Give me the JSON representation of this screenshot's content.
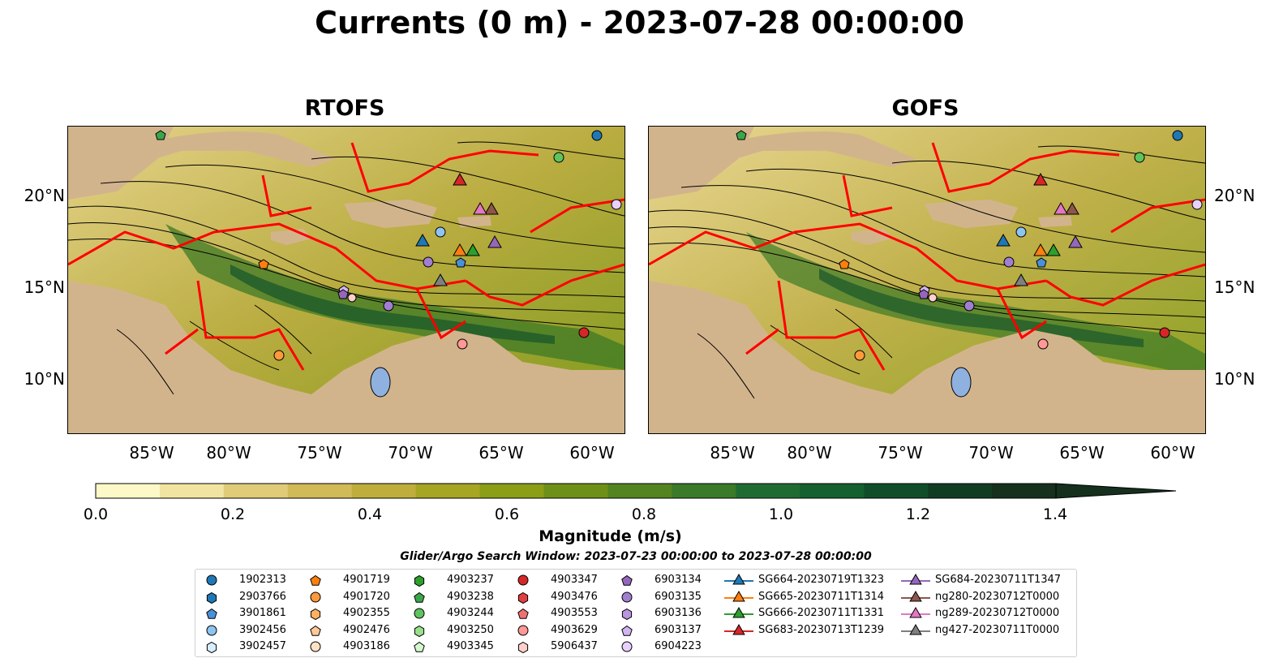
{
  "title": "Currents (0 m) - 2023-07-28 00:00:00",
  "panels": [
    {
      "title": "RTOFS"
    },
    {
      "title": "GOFS"
    }
  ],
  "map": {
    "lon_range": [
      -89,
      -58
    ],
    "lat_range": [
      7,
      24
    ],
    "lat_ticks": [
      "20°N",
      "15°N",
      "10°N"
    ],
    "lon_ticks": [
      "85°W",
      "80°W",
      "75°W",
      "70°W",
      "65°W",
      "60°W"
    ],
    "colors": {
      "land": "#d2b48c",
      "boundary": "#ff0000",
      "streamline": "#000000",
      "lake": "#8fb1e0"
    }
  },
  "colorbar": {
    "label": "Magnitude (m/s)",
    "ticks": [
      "0.0",
      "0.2",
      "0.4",
      "0.6",
      "0.8",
      "1.0",
      "1.2",
      "1.4"
    ],
    "range": [
      0,
      1.5
    ],
    "extend": "max",
    "colors": [
      "#fdf8c8",
      "#f0e4a0",
      "#e0cc78",
      "#d1ba58",
      "#bfae3c",
      "#a7a524",
      "#8c9d16",
      "#6e9018",
      "#548420",
      "#3a7a28",
      "#1f6c32",
      "#14602f",
      "#104e2a",
      "#123c22",
      "#15301c"
    ]
  },
  "search_window": "Glider/Argo Search Window: 2023-07-23 00:00:00 to 2023-07-28 00:00:00",
  "legend": [
    [
      {
        "label": "1902313",
        "shape": "circle",
        "color": "#1f77b4"
      },
      {
        "label": "2903766",
        "shape": "hexagon",
        "color": "#1f77b4"
      },
      {
        "label": "3901861",
        "shape": "pentagon",
        "color": "#4a90d9"
      },
      {
        "label": "3902456",
        "shape": "circle",
        "color": "#8ec5f0"
      },
      {
        "label": "3902457",
        "shape": "hexagon",
        "color": "#d8eeff"
      }
    ],
    [
      {
        "label": "4901719",
        "shape": "pentagon",
        "color": "#ff7f0e"
      },
      {
        "label": "4901720",
        "shape": "circle",
        "color": "#ff9a3c"
      },
      {
        "label": "4902355",
        "shape": "hexagon",
        "color": "#ffb060"
      },
      {
        "label": "4902476",
        "shape": "pentagon",
        "color": "#ffc896"
      },
      {
        "label": "4903186",
        "shape": "circle",
        "color": "#ffe2c4"
      }
    ],
    [
      {
        "label": "4903237",
        "shape": "hexagon",
        "color": "#2ca02c"
      },
      {
        "label": "4903238",
        "shape": "pentagon",
        "color": "#3aa64a"
      },
      {
        "label": "4903244",
        "shape": "circle",
        "color": "#5ec45e"
      },
      {
        "label": "4903250",
        "shape": "hexagon",
        "color": "#98df8a"
      },
      {
        "label": "4903345",
        "shape": "pentagon",
        "color": "#d4f7cc"
      }
    ],
    [
      {
        "label": "4903347",
        "shape": "circle",
        "color": "#d62728"
      },
      {
        "label": "4903476",
        "shape": "hexagon",
        "color": "#e04040"
      },
      {
        "label": "4903553",
        "shape": "pentagon",
        "color": "#f07070"
      },
      {
        "label": "4903629",
        "shape": "circle",
        "color": "#ff9896"
      },
      {
        "label": "5906437",
        "shape": "hexagon",
        "color": "#ffd0cc"
      }
    ],
    [
      {
        "label": "6903134",
        "shape": "pentagon",
        "color": "#9467bd"
      },
      {
        "label": "6903135",
        "shape": "circle",
        "color": "#a07ed0"
      },
      {
        "label": "6903136",
        "shape": "hexagon",
        "color": "#b896e0"
      },
      {
        "label": "6903137",
        "shape": "pentagon",
        "color": "#d2b4f0"
      },
      {
        "label": "6904223",
        "shape": "circle",
        "color": "#e8d0ff"
      }
    ],
    [
      {
        "label": "SG664-20230719T1323",
        "shape": "triangle",
        "color": "#1f77b4"
      },
      {
        "label": "SG665-20230711T1314",
        "shape": "triangle",
        "color": "#ff7f0e"
      },
      {
        "label": "SG666-20230711T1331",
        "shape": "triangle",
        "color": "#2ca02c"
      },
      {
        "label": "SG683-20230713T1239",
        "shape": "triangle",
        "color": "#d62728"
      }
    ],
    [
      {
        "label": "SG684-20230711T1347",
        "shape": "triangle",
        "color": "#9467bd"
      },
      {
        "label": "ng280-20230712T0000",
        "shape": "triangle",
        "color": "#8c564b"
      },
      {
        "label": "ng289-20230712T0000",
        "shape": "triangle",
        "color": "#e377c2"
      },
      {
        "label": "ng427-20230711T0000",
        "shape": "triangle",
        "color": "#7f7f7f"
      }
    ]
  ]
}
